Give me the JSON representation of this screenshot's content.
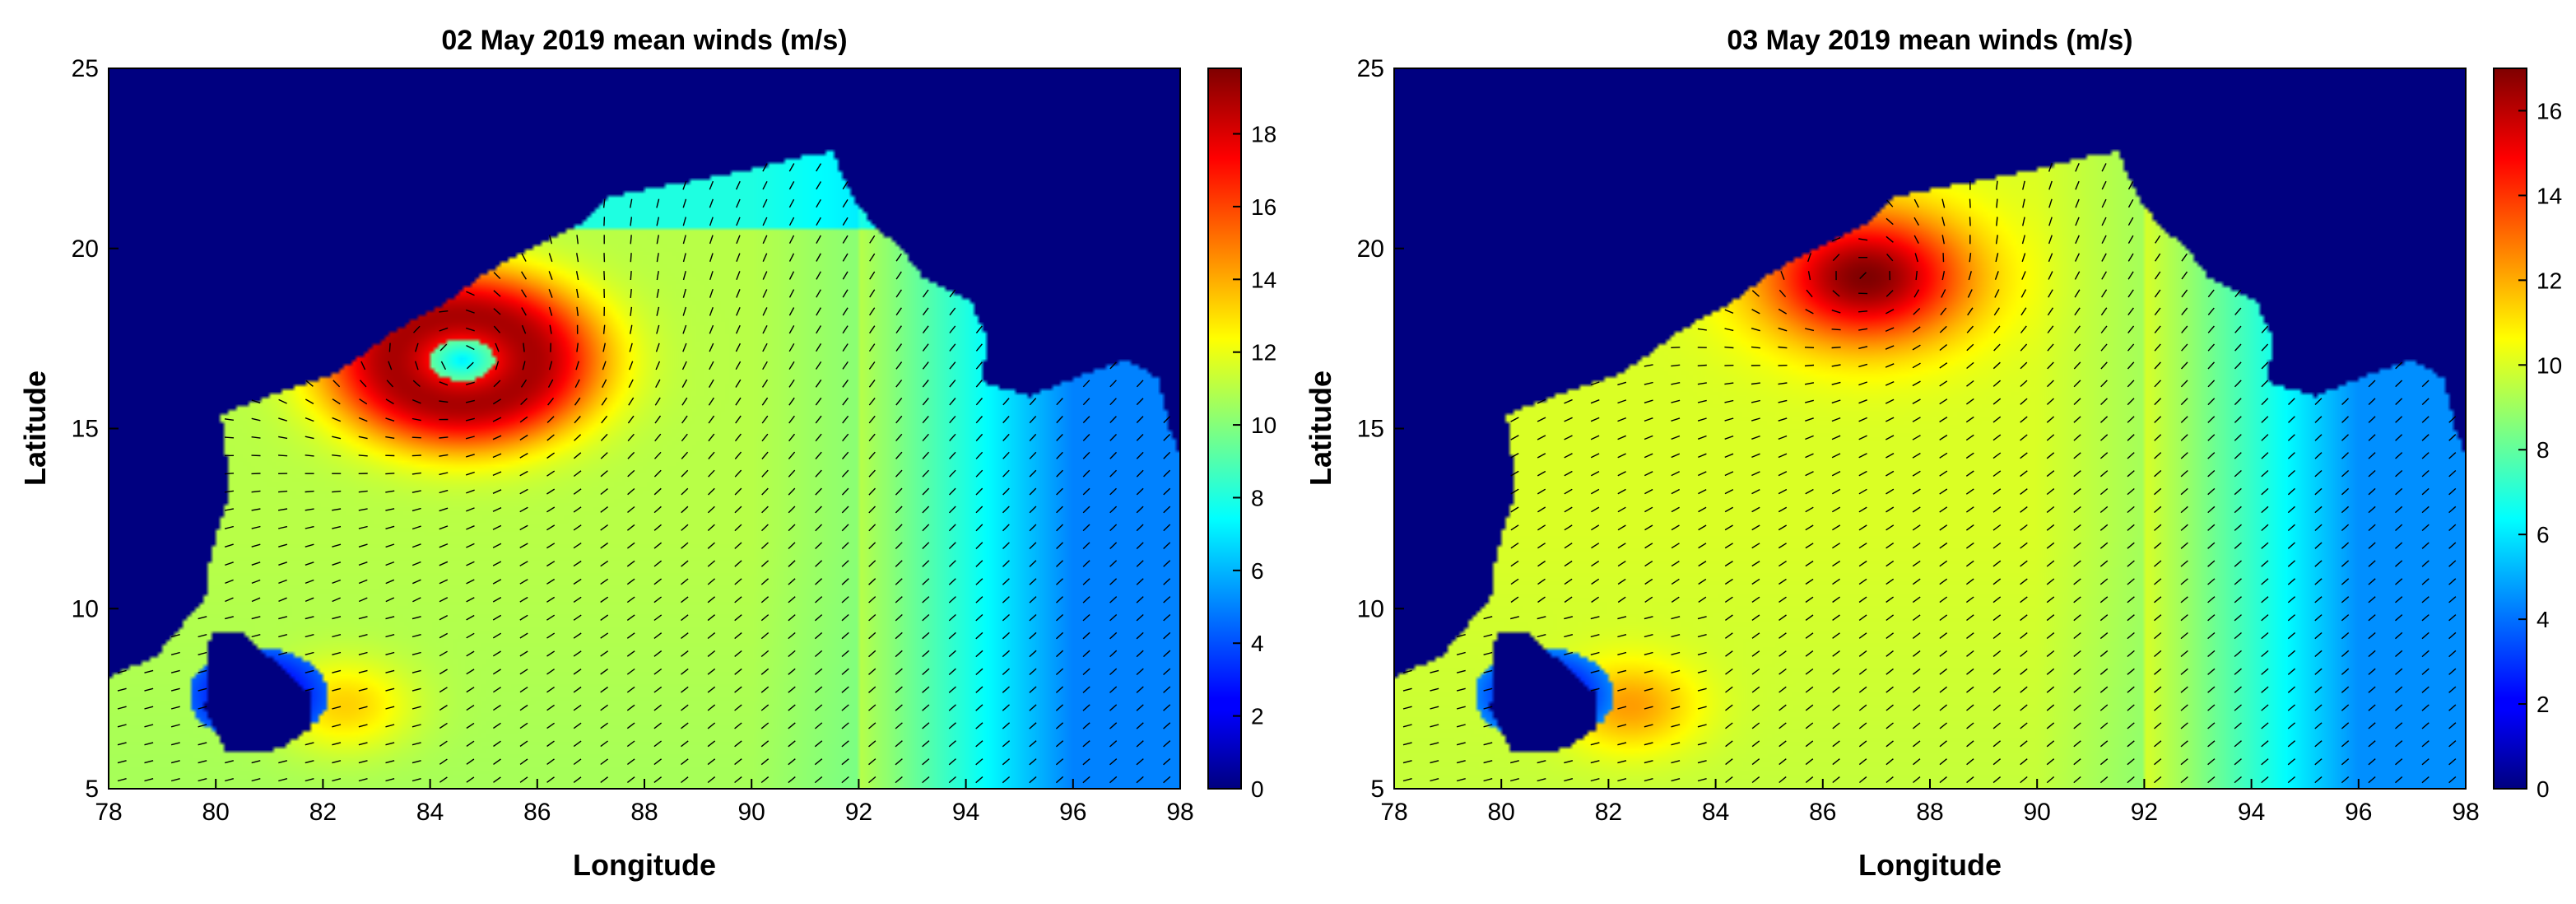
{
  "chart_data": [
    {
      "type": "heatmap",
      "title": "02 May 2019 mean winds (m/s)",
      "xlabel": "Longitude",
      "ylabel": "Latitude",
      "xlim": [
        78,
        98
      ],
      "ylim": [
        5,
        25
      ],
      "xticks": [
        "78",
        "80",
        "82",
        "84",
        "86",
        "88",
        "90",
        "92",
        "94",
        "96",
        "98"
      ],
      "yticks": [
        "5",
        "10",
        "15",
        "20",
        "25"
      ],
      "colorbar": {
        "range": [
          0,
          19.8
        ],
        "ticks": [
          "0",
          "2",
          "4",
          "6",
          "8",
          "10",
          "12",
          "14",
          "16",
          "18"
        ],
        "colormap": "jet"
      },
      "vectors": "wind-direction-arrows",
      "features": {
        "cyclone_center": {
          "lon": 84.6,
          "lat": 16.9,
          "max_speed": 19
        },
        "open_sea_speed": 11,
        "southeast_speed": 5,
        "sri_lanka_calm": {
          "lon": 80.8,
          "lat": 7.6
        }
      }
    },
    {
      "type": "heatmap",
      "title": "03 May 2019 mean winds (m/s)",
      "xlabel": "Longitude",
      "ylabel": "Latitude",
      "xlim": [
        78,
        98
      ],
      "ylim": [
        5,
        25
      ],
      "xticks": [
        "78",
        "80",
        "82",
        "84",
        "86",
        "88",
        "90",
        "92",
        "94",
        "96",
        "98"
      ],
      "yticks": [
        "5",
        "10",
        "15",
        "20",
        "25"
      ],
      "colorbar": {
        "range": [
          0,
          17
        ],
        "ticks": [
          "0",
          "2",
          "4",
          "6",
          "8",
          "10",
          "12",
          "14",
          "16"
        ],
        "colormap": "jet"
      },
      "vectors": "wind-direction-arrows",
      "features": {
        "cyclone_center": {
          "lon": 86.8,
          "lat": 19.2,
          "max_speed": 17
        },
        "open_sea_speed": 10,
        "southeast_speed": 4.5,
        "sri_lanka_calm": {
          "lon": 80.8,
          "lat": 7.6
        }
      }
    }
  ]
}
